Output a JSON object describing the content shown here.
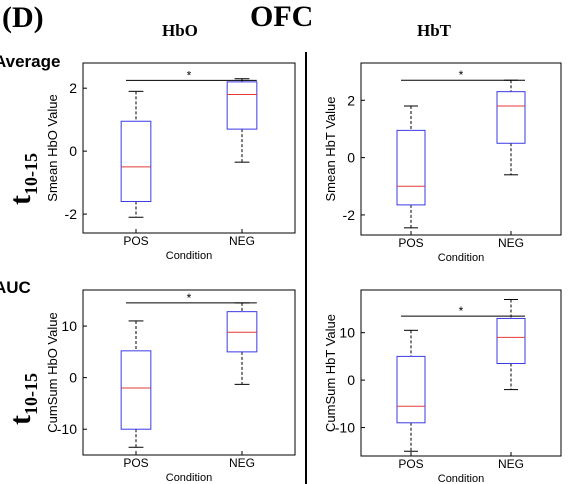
{
  "panel_label": "(D)",
  "region_title": "OFC",
  "column_titles": {
    "hbo": "HbO",
    "hbt": "HbT"
  },
  "row_labels": {
    "average": "Average",
    "auc": "AUC"
  },
  "time_labels": {
    "main": "t",
    "sub": "10-15"
  },
  "colors": {
    "box": "#3a3ae6",
    "median": "#e63a3a",
    "whisker": "#000000",
    "sig_line": "#000000"
  },
  "chart_data": [
    {
      "id": "avg-hbo",
      "type": "boxplot",
      "xlabel": "Condition",
      "ylabel": "Smean HbO Value",
      "categories": [
        "POS",
        "NEG"
      ],
      "ylim": [
        -2.6,
        2.8
      ],
      "yticks": [
        -2,
        0,
        2
      ],
      "boxes": [
        {
          "label": "POS",
          "whisker_low": -2.1,
          "q1": -1.6,
          "median": -0.5,
          "q3": 0.95,
          "whisker_high": 1.9
        },
        {
          "label": "NEG",
          "whisker_low": -0.35,
          "q1": 0.7,
          "median": 1.8,
          "q3": 2.2,
          "whisker_high": 2.3
        }
      ],
      "significance": {
        "label": "*",
        "y": 2.25
      }
    },
    {
      "id": "avg-hbt",
      "type": "boxplot",
      "xlabel": "Condition",
      "ylabel": "Smean HbT Value",
      "categories": [
        "POS",
        "NEG"
      ],
      "ylim": [
        -2.7,
        3.3
      ],
      "yticks": [
        -2,
        0,
        2
      ],
      "boxes": [
        {
          "label": "POS",
          "whisker_low": -2.45,
          "q1": -1.65,
          "median": -1.0,
          "q3": 0.95,
          "whisker_high": 1.8
        },
        {
          "label": "NEG",
          "whisker_low": -0.6,
          "q1": 0.5,
          "median": 1.8,
          "q3": 2.3,
          "whisker_high": 2.7
        }
      ],
      "significance": {
        "label": "*",
        "y": 2.7
      }
    },
    {
      "id": "auc-hbo",
      "type": "boxplot",
      "xlabel": "Condition",
      "ylabel": "CumSum HbO Value",
      "categories": [
        "POS",
        "NEG"
      ],
      "ylim": [
        -15,
        17
      ],
      "yticks": [
        -10,
        0,
        10
      ],
      "boxes": [
        {
          "label": "POS",
          "whisker_low": -13.5,
          "q1": -10.0,
          "median": -2.0,
          "q3": 5.2,
          "whisker_high": 11.0
        },
        {
          "label": "NEG",
          "whisker_low": -1.3,
          "q1": 5.0,
          "median": 8.8,
          "q3": 12.8,
          "whisker_high": 14.5
        }
      ],
      "significance": {
        "label": "*",
        "y": 14.5
      }
    },
    {
      "id": "auc-hbt",
      "type": "boxplot",
      "xlabel": "Condition",
      "ylabel": "CumSum HbT Value",
      "categories": [
        "POS",
        "NEG"
      ],
      "ylim": [
        -16,
        19
      ],
      "yticks": [
        -10,
        0,
        10
      ],
      "boxes": [
        {
          "label": "POS",
          "whisker_low": -15.0,
          "q1": -9.0,
          "median": -5.5,
          "q3": 5.0,
          "whisker_high": 10.5
        },
        {
          "label": "NEG",
          "whisker_low": -2.0,
          "q1": 3.5,
          "median": 9.0,
          "q3": 13.0,
          "whisker_high": 17.0
        }
      ],
      "significance": {
        "label": "*",
        "y": 13.5
      }
    }
  ]
}
